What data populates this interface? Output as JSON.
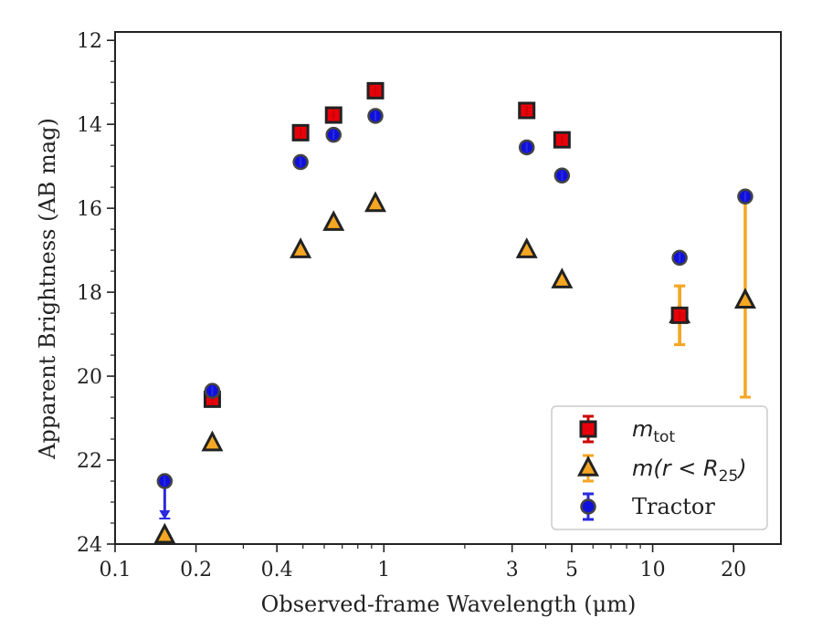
{
  "chart_data": {
    "type": "scatter",
    "xlabel": "Observed-frame Wavelength (μm)",
    "ylabel": "Apparent Brightness (AB mag)",
    "xscale": "log",
    "xlim": [
      0.1,
      30
    ],
    "ylim": [
      24,
      11.8
    ],
    "y_inverted": true,
    "x_ticks": [
      0.1,
      0.2,
      0.4,
      1,
      3,
      5,
      10,
      20
    ],
    "x_tick_labels": [
      "0.1",
      "0.2",
      "0.4",
      "1",
      "3",
      "5",
      "10",
      "20"
    ],
    "y_ticks": [
      12,
      14,
      16,
      18,
      20,
      22,
      24
    ],
    "y_tick_labels": [
      "12",
      "14",
      "16",
      "18",
      "20",
      "22",
      "24"
    ],
    "grid": false,
    "legend_position": "lower-right",
    "series": [
      {
        "name": "m_tot",
        "legend_main": "m",
        "legend_sub": "tot",
        "marker": "square",
        "color": "#e8000b",
        "edge_color": "#222222",
        "points": [
          {
            "x": 0.23,
            "y": 20.55
          },
          {
            "x": 0.49,
            "y": 14.2
          },
          {
            "x": 0.65,
            "y": 13.78
          },
          {
            "x": 0.93,
            "y": 13.2
          },
          {
            "x": 3.4,
            "y": 13.67
          },
          {
            "x": 4.6,
            "y": 14.37
          },
          {
            "x": 12.6,
            "y": 18.55,
            "yerr": 0.7
          }
        ]
      },
      {
        "name": "m(r<R_25)",
        "legend_main": "m(r < R",
        "legend_sub": "25",
        "legend_tail": ")",
        "marker": "triangle",
        "color": "#f5a623",
        "edge_color": "#222222",
        "points": [
          {
            "x": 0.153,
            "y": 23.8
          },
          {
            "x": 0.23,
            "y": 21.6
          },
          {
            "x": 0.49,
            "y": 17.0
          },
          {
            "x": 0.65,
            "y": 16.35
          },
          {
            "x": 0.93,
            "y": 15.9
          },
          {
            "x": 3.4,
            "y": 17.0
          },
          {
            "x": 4.6,
            "y": 17.72
          },
          {
            "x": 12.6,
            "y": 18.55,
            "yerr": 0.7
          },
          {
            "x": 22.1,
            "y": 18.2,
            "yerr_up": 2.5,
            "yerr_down": 2.3
          }
        ]
      },
      {
        "name": "Tractor",
        "marker": "circle",
        "color": "#1010dd",
        "edge_color": "#444444",
        "points": [
          {
            "x": 0.153,
            "y": 22.5,
            "upper_limit": true
          },
          {
            "x": 0.23,
            "y": 20.35
          },
          {
            "x": 0.49,
            "y": 14.9
          },
          {
            "x": 0.65,
            "y": 14.25
          },
          {
            "x": 0.93,
            "y": 13.8
          },
          {
            "x": 3.4,
            "y": 14.55
          },
          {
            "x": 4.6,
            "y": 15.22
          },
          {
            "x": 12.6,
            "y": 17.18
          },
          {
            "x": 22.1,
            "y": 15.72
          }
        ]
      }
    ],
    "legend": [
      "m_tot",
      "m(r<R_25)",
      "Tractor"
    ]
  }
}
